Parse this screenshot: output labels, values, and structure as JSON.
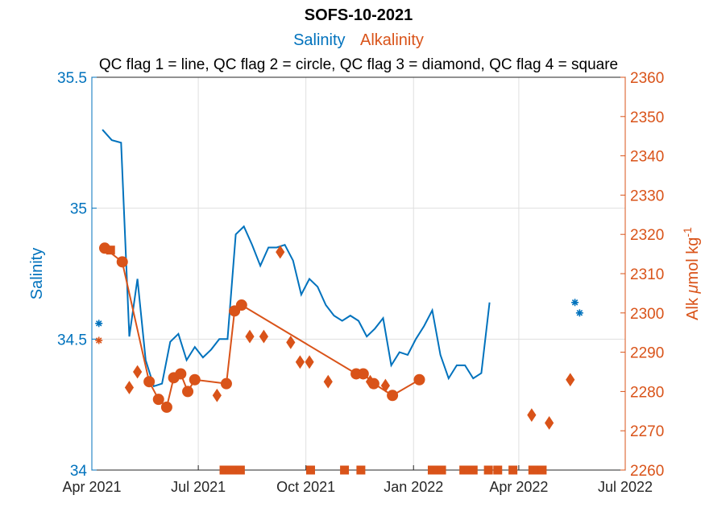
{
  "chart_data": {
    "type": "line",
    "title": "SOFS-10-2021",
    "subtitle_series": [
      {
        "label": "Salinity",
        "color": "#0072BD"
      },
      {
        "label": "Alkalinity",
        "color": "#D95319"
      }
    ],
    "subtitle2": "QC flag 1 = line, QC flag 2 = circle, QC flag 3 = diamond, QC flag 4 = square",
    "xlim": [
      "2021-04-01",
      "2022-07-01"
    ],
    "x_ticks": [
      {
        "date": "2021-04-01",
        "label": "Apr 2021"
      },
      {
        "date": "2021-07-01",
        "label": "Jul 2021"
      },
      {
        "date": "2021-10-01",
        "label": "Oct 2021"
      },
      {
        "date": "2022-01-01",
        "label": "Jan 2022"
      },
      {
        "date": "2022-04-01",
        "label": "Apr 2022"
      },
      {
        "date": "2022-07-01",
        "label": "Jul 2022"
      }
    ],
    "left_axis": {
      "label": "Salinity",
      "color": "#0072BD",
      "ylim": [
        34,
        35.5
      ],
      "ticks": [
        34,
        34.5,
        35,
        35.5
      ],
      "tick_labels": [
        "34",
        "34.5",
        "35",
        "35.5"
      ]
    },
    "right_axis": {
      "label_main": "Alk ",
      "label_mu": "μ",
      "label_rest": "mol kg",
      "label_sup": "-1",
      "color": "#D95319",
      "ylim": [
        2260,
        2360
      ],
      "ticks": [
        2260,
        2270,
        2280,
        2290,
        2300,
        2310,
        2320,
        2330,
        2340,
        2350,
        2360
      ],
      "tick_labels": [
        "2260",
        "2270",
        "2280",
        "2290",
        "2300",
        "2310",
        "2320",
        "2330",
        "2340",
        "2350",
        "2360"
      ]
    },
    "grid": true,
    "series": [
      {
        "name": "Salinity",
        "axis": "left",
        "color": "#0072BD",
        "line": [
          [
            "2021-04-10",
            35.3
          ],
          [
            "2021-04-18",
            35.26
          ],
          [
            "2021-04-26",
            35.25
          ],
          [
            "2021-05-03",
            34.51
          ],
          [
            "2021-05-10",
            34.73
          ],
          [
            "2021-05-17",
            34.42
          ],
          [
            "2021-05-24",
            34.32
          ],
          [
            "2021-05-31",
            34.33
          ],
          [
            "2021-06-07",
            34.49
          ],
          [
            "2021-06-14",
            34.52
          ],
          [
            "2021-06-21",
            34.42
          ],
          [
            "2021-06-28",
            34.47
          ],
          [
            "2021-07-05",
            34.43
          ],
          [
            "2021-07-12",
            34.46
          ],
          [
            "2021-07-19",
            34.5
          ],
          [
            "2021-07-26",
            34.5
          ],
          [
            "2021-08-02",
            34.9
          ],
          [
            "2021-08-09",
            34.93
          ],
          [
            "2021-08-16",
            34.86
          ],
          [
            "2021-08-23",
            34.78
          ],
          [
            "2021-08-30",
            34.85
          ],
          [
            "2021-09-06",
            34.85
          ],
          [
            "2021-09-13",
            34.86
          ],
          [
            "2021-09-20",
            34.8
          ],
          [
            "2021-09-27",
            34.67
          ],
          [
            "2021-10-04",
            34.73
          ],
          [
            "2021-10-11",
            34.7
          ],
          [
            "2021-10-18",
            34.63
          ],
          [
            "2021-10-25",
            34.59
          ],
          [
            "2021-11-01",
            34.57
          ],
          [
            "2021-11-08",
            34.59
          ],
          [
            "2021-11-15",
            34.57
          ],
          [
            "2021-11-22",
            34.51
          ],
          [
            "2021-11-29",
            34.54
          ],
          [
            "2021-12-06",
            34.58
          ],
          [
            "2021-12-13",
            34.4
          ],
          [
            "2021-12-20",
            34.45
          ],
          [
            "2021-12-27",
            34.44
          ],
          [
            "2022-01-03",
            34.5
          ],
          [
            "2022-01-10",
            34.55
          ],
          [
            "2022-01-17",
            34.61
          ],
          [
            "2022-01-24",
            34.44
          ],
          [
            "2022-01-31",
            34.35
          ],
          [
            "2022-02-07",
            34.4
          ],
          [
            "2022-02-14",
            34.4
          ],
          [
            "2022-02-21",
            34.35
          ],
          [
            "2022-02-28",
            34.37
          ],
          [
            "2022-03-07",
            34.64
          ]
        ],
        "flag3_stars": [
          [
            "2021-04-07",
            34.56
          ],
          [
            "2022-05-19",
            34.64
          ],
          [
            "2022-05-23",
            34.6
          ]
        ]
      },
      {
        "name": "Alkalinity",
        "axis": "right",
        "color": "#D95319",
        "flag2_line": [
          [
            "2021-04-12",
            2316.5
          ],
          [
            "2021-04-27",
            2313
          ],
          [
            "2021-05-20",
            2282.5
          ],
          [
            "2021-05-28",
            2278
          ],
          [
            "2021-06-04",
            2276
          ],
          [
            "2021-06-10",
            2283.5
          ],
          [
            "2021-06-16",
            2284.5
          ],
          [
            "2021-06-22",
            2280
          ],
          [
            "2021-06-28",
            2283
          ],
          [
            "2021-07-25",
            2282
          ],
          [
            "2021-08-01",
            2300.5
          ],
          [
            "2021-08-07",
            2302
          ],
          [
            "2021-11-13",
            2284.5
          ],
          [
            "2021-11-19",
            2284.5
          ],
          [
            "2021-11-28",
            2282
          ],
          [
            "2021-12-14",
            2279
          ],
          [
            "2022-01-06",
            2283
          ]
        ],
        "flag3_diamonds": [
          [
            "2021-05-03",
            2281
          ],
          [
            "2021-05-10",
            2285
          ],
          [
            "2021-07-17",
            2279
          ],
          [
            "2021-08-14",
            2294
          ],
          [
            "2021-08-26",
            2294
          ],
          [
            "2021-09-09",
            2315.5
          ],
          [
            "2021-09-18",
            2292.5
          ],
          [
            "2021-09-26",
            2287.5
          ],
          [
            "2021-10-04",
            2287.5
          ],
          [
            "2021-10-20",
            2282.5
          ],
          [
            "2021-11-25",
            2282.5
          ],
          [
            "2021-12-08",
            2281.5
          ],
          [
            "2022-04-12",
            2274
          ],
          [
            "2022-04-27",
            2272
          ],
          [
            "2022-05-15",
            2283
          ]
        ],
        "flag3_stars": [
          [
            "2021-04-07",
            2293
          ]
        ],
        "flag4_squares": [
          [
            "2021-04-17",
            2316
          ],
          [
            "2021-07-23",
            2260
          ],
          [
            "2021-07-28",
            2260
          ],
          [
            "2021-08-01",
            2260
          ],
          [
            "2021-08-06",
            2260
          ],
          [
            "2021-10-05",
            2260
          ],
          [
            "2021-11-03",
            2260
          ],
          [
            "2021-11-17",
            2260
          ],
          [
            "2022-01-17",
            2260
          ],
          [
            "2022-01-21",
            2260
          ],
          [
            "2022-01-25",
            2260
          ],
          [
            "2022-02-13",
            2260
          ],
          [
            "2022-02-17",
            2260
          ],
          [
            "2022-02-21",
            2260
          ],
          [
            "2022-03-06",
            2260
          ],
          [
            "2022-03-14",
            2260
          ],
          [
            "2022-03-27",
            2260
          ],
          [
            "2022-04-13",
            2260
          ],
          [
            "2022-04-17",
            2260
          ],
          [
            "2022-04-21",
            2260
          ]
        ]
      }
    ]
  }
}
